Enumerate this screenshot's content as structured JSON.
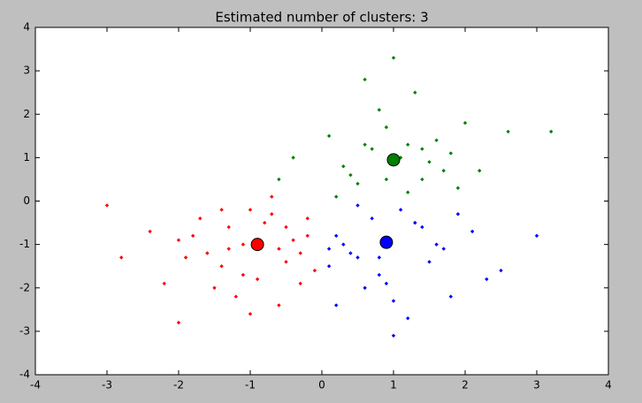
{
  "chart_data": {
    "type": "scatter",
    "title": "Estimated number of clusters: 3",
    "xlim": [
      -4,
      4
    ],
    "ylim": [
      -4,
      4
    ],
    "xticks": [
      -4,
      -3,
      -2,
      -1,
      0,
      1,
      2,
      3,
      4
    ],
    "yticks": [
      -4,
      -3,
      -2,
      -1,
      0,
      1,
      2,
      3,
      4
    ],
    "grid": false,
    "series": [
      {
        "color": "#ff0000",
        "x": [
          -0.9,
          -1.3,
          -0.5,
          -1.6,
          -0.2,
          -1.1,
          -0.7,
          -2.0,
          -1.4,
          -0.3,
          -0.8,
          -1.9,
          -1.2,
          -0.6,
          -2.4,
          -1.0,
          -0.4,
          -1.5,
          -0.1,
          -2.8,
          -1.7,
          -0.9,
          -1.3,
          -0.5,
          -2.2,
          -1.0,
          -0.7,
          -1.8,
          -0.3,
          -1.1,
          -3.0,
          -0.6,
          -1.4,
          -0.2,
          -2.0
        ],
        "y": [
          -1.0,
          -0.6,
          -1.4,
          -1.2,
          -0.8,
          -1.7,
          -0.3,
          -0.9,
          -1.5,
          -1.9,
          -0.5,
          -1.3,
          -2.2,
          -1.1,
          -0.7,
          -0.2,
          -0.9,
          -2.0,
          -1.6,
          -1.3,
          -0.4,
          -1.8,
          -1.1,
          -0.6,
          -1.9,
          -2.6,
          0.1,
          -0.8,
          -1.2,
          -1.0,
          -0.1,
          -2.4,
          -0.2,
          -0.4,
          -2.8
        ]
      },
      {
        "color": "#008000",
        "x": [
          1.0,
          0.6,
          1.4,
          0.3,
          1.8,
          0.9,
          1.2,
          0.1,
          2.2,
          0.5,
          1.6,
          0.8,
          1.1,
          2.6,
          0.4,
          1.3,
          0.7,
          1.9,
          -0.4,
          1.5,
          1.0,
          0.2,
          2.0,
          1.2,
          0.6,
          3.2,
          0.9,
          1.7,
          -0.6,
          1.4
        ],
        "y": [
          0.9,
          1.3,
          0.5,
          0.8,
          1.1,
          1.7,
          0.2,
          1.5,
          0.7,
          0.4,
          1.4,
          2.1,
          1.0,
          1.6,
          0.6,
          2.5,
          1.2,
          0.3,
          1.0,
          0.9,
          3.3,
          0.1,
          1.8,
          1.3,
          2.8,
          1.6,
          0.5,
          0.7,
          0.5,
          1.2
        ]
      },
      {
        "color": "#0000ff",
        "x": [
          0.9,
          0.5,
          1.3,
          0.2,
          1.7,
          0.8,
          1.1,
          0.1,
          2.1,
          0.6,
          1.5,
          0.3,
          1.0,
          2.5,
          0.7,
          1.2,
          0.4,
          1.9,
          0.9,
          1.4,
          3.0,
          0.2,
          1.6,
          1.0,
          0.5,
          2.3,
          0.8,
          1.3,
          0.1,
          1.8
        ],
        "y": [
          -0.9,
          -1.3,
          -0.5,
          -0.8,
          -1.1,
          -1.7,
          -0.2,
          -1.5,
          -0.7,
          -2.0,
          -1.4,
          -1.0,
          -2.3,
          -1.6,
          -0.4,
          -2.7,
          -1.2,
          -0.3,
          -1.9,
          -0.6,
          -0.8,
          -2.4,
          -1.0,
          -3.1,
          -0.1,
          -1.8,
          -1.3,
          -0.5,
          -1.1,
          -2.2
        ]
      }
    ],
    "centers": {
      "x": [
        -0.9,
        1.0,
        0.9
      ],
      "y": [
        -1.0,
        0.95,
        -0.95
      ]
    }
  }
}
